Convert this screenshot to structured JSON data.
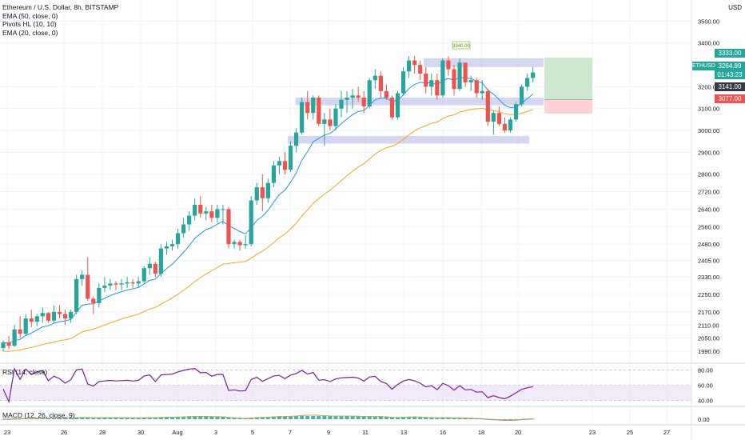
{
  "header": {
    "title": "Ethereum / U.S. Dollar, 8h, BITSTAMP",
    "indicators": [
      "EMA (50, close, 0)",
      "Pivots HL (10, 10)",
      "EMA (20, close, 0)"
    ]
  },
  "currency_label": "USD",
  "symbol_tag": "ETHUSD",
  "price_tags": {
    "target": "3333.00",
    "last": "3264.89",
    "countdown": "01:43:23",
    "entry": "3141.00",
    "stop": "3077.00",
    "pivot_label": "3340.00"
  },
  "rsi_label": "RSI (14, close)",
  "macd_label": "MACD (12, 26, close, 9)",
  "colors": {
    "up": "#26a69a",
    "down": "#ef5350",
    "ema20": "#2196f3",
    "ema50": "#f5a623",
    "rsi": "#7b1fa2",
    "zone": "#b2b5e4",
    "profit": "#c8e6c9",
    "loss": "#ffcdd2"
  },
  "chart_data": [
    {
      "type": "candlestick",
      "x_ticks": [
        "23",
        "26",
        "28",
        "30",
        "Aug",
        "3",
        "5",
        "7",
        "9",
        "11",
        "13",
        "16",
        "18",
        "20",
        "23",
        "25",
        "27"
      ],
      "y_ticks": [
        1990,
        2050,
        2110,
        2170,
        2250,
        2330,
        2405,
        2480,
        2560,
        2640,
        2720,
        2800,
        2900,
        3000,
        3100,
        3200,
        3400,
        3500
      ],
      "ylim": [
        1950,
        3560
      ],
      "candles": [
        [
          2005,
          2040,
          1990,
          2030
        ],
        [
          2030,
          2060,
          2000,
          2015
        ],
        [
          2015,
          2110,
          2010,
          2090
        ],
        [
          2090,
          2150,
          2050,
          2070
        ],
        [
          2070,
          2160,
          2060,
          2140
        ],
        [
          2140,
          2180,
          2100,
          2125
        ],
        [
          2125,
          2160,
          2105,
          2150
        ],
        [
          2150,
          2190,
          2120,
          2165
        ],
        [
          2165,
          2170,
          2120,
          2130
        ],
        [
          2130,
          2200,
          2120,
          2170
        ],
        [
          2170,
          2200,
          2140,
          2160
        ],
        [
          2160,
          2180,
          2110,
          2140
        ],
        [
          2140,
          2180,
          2120,
          2170
        ],
        [
          2170,
          2340,
          2160,
          2320
        ],
        [
          2320,
          2360,
          2290,
          2340
        ],
        [
          2340,
          2420,
          2220,
          2230
        ],
        [
          2230,
          2240,
          2160,
          2210
        ],
        [
          2210,
          2300,
          2190,
          2280
        ],
        [
          2280,
          2330,
          2260,
          2290
        ],
        [
          2290,
          2320,
          2270,
          2300
        ],
        [
          2300,
          2310,
          2270,
          2295
        ],
        [
          2295,
          2320,
          2270,
          2300
        ],
        [
          2300,
          2330,
          2280,
          2305
        ],
        [
          2305,
          2320,
          2280,
          2300
        ],
        [
          2300,
          2330,
          2280,
          2310
        ],
        [
          2310,
          2380,
          2300,
          2370
        ],
        [
          2370,
          2420,
          2340,
          2390
        ],
        [
          2390,
          2400,
          2330,
          2345
        ],
        [
          2345,
          2480,
          2330,
          2460
        ],
        [
          2460,
          2490,
          2430,
          2470
        ],
        [
          2470,
          2500,
          2450,
          2480
        ],
        [
          2480,
          2550,
          2460,
          2530
        ],
        [
          2530,
          2600,
          2510,
          2570
        ],
        [
          2570,
          2630,
          2540,
          2610
        ],
        [
          2610,
          2690,
          2590,
          2660
        ],
        [
          2660,
          2700,
          2600,
          2620
        ],
        [
          2620,
          2650,
          2590,
          2630
        ],
        [
          2630,
          2660,
          2580,
          2600
        ],
        [
          2600,
          2660,
          2580,
          2640
        ],
        [
          2640,
          2660,
          2570,
          2640
        ],
        [
          2640,
          2650,
          2460,
          2480
        ],
        [
          2480,
          2500,
          2460,
          2490
        ],
        [
          2490,
          2500,
          2450,
          2475
        ],
        [
          2475,
          2520,
          2460,
          2480
        ],
        [
          2480,
          2700,
          2470,
          2680
        ],
        [
          2680,
          2760,
          2660,
          2740
        ],
        [
          2740,
          2800,
          2630,
          2690
        ],
        [
          2690,
          2780,
          2670,
          2760
        ],
        [
          2760,
          2860,
          2740,
          2840
        ],
        [
          2840,
          2880,
          2800,
          2860
        ],
        [
          2860,
          2900,
          2800,
          2820
        ],
        [
          2820,
          2950,
          2810,
          2930
        ],
        [
          2930,
          3010,
          2900,
          2990
        ],
        [
          2990,
          3150,
          2980,
          3130
        ],
        [
          3130,
          3180,
          3050,
          3080
        ],
        [
          3080,
          3160,
          3050,
          3150
        ],
        [
          3150,
          3160,
          3020,
          3030
        ],
        [
          3030,
          3080,
          2930,
          3050
        ],
        [
          3050,
          3100,
          3000,
          3020
        ],
        [
          3020,
          3120,
          3000,
          3100
        ],
        [
          3100,
          3180,
          3060,
          3140
        ],
        [
          3140,
          3180,
          3080,
          3150
        ],
        [
          3150,
          3190,
          3100,
          3160
        ],
        [
          3160,
          3200,
          3130,
          3150
        ],
        [
          3150,
          3180,
          3080,
          3110
        ],
        [
          3110,
          3240,
          3100,
          3230
        ],
        [
          3230,
          3280,
          3190,
          3250
        ],
        [
          3250,
          3270,
          3150,
          3180
        ],
        [
          3180,
          3210,
          3140,
          3150
        ],
        [
          3150,
          3160,
          3050,
          3060
        ],
        [
          3060,
          3180,
          3050,
          3170
        ],
        [
          3170,
          3290,
          3160,
          3270
        ],
        [
          3270,
          3340,
          3240,
          3320
        ],
        [
          3320,
          3340,
          3260,
          3300
        ],
        [
          3300,
          3320,
          3230,
          3260
        ],
        [
          3260,
          3290,
          3170,
          3200
        ],
        [
          3200,
          3260,
          3160,
          3230
        ],
        [
          3230,
          3260,
          3140,
          3160
        ],
        [
          3160,
          3330,
          3150,
          3320
        ],
        [
          3320,
          3340,
          3250,
          3280
        ],
        [
          3280,
          3300,
          3160,
          3190
        ],
        [
          3190,
          3330,
          3180,
          3310
        ],
        [
          3310,
          3310,
          3200,
          3220
        ],
        [
          3220,
          3250,
          3180,
          3230
        ],
        [
          3230,
          3240,
          3150,
          3170
        ],
        [
          3170,
          3230,
          3140,
          3180
        ],
        [
          3180,
          3190,
          3020,
          3040
        ],
        [
          3040,
          3090,
          2980,
          3080
        ],
        [
          3080,
          3110,
          3020,
          3030
        ],
        [
          3030,
          3060,
          2990,
          3000
        ],
        [
          3000,
          3060,
          2990,
          3050
        ],
        [
          3050,
          3130,
          3040,
          3120
        ],
        [
          3120,
          3210,
          3110,
          3200
        ],
        [
          3200,
          3260,
          3180,
          3240
        ],
        [
          3240,
          3290,
          3220,
          3265
        ]
      ]
    },
    {
      "type": "line",
      "title": "RSI (14, close)",
      "y_ticks": [
        40,
        60,
        80
      ],
      "ylim": [
        35,
        85
      ]
    },
    {
      "type": "bar",
      "title": "MACD (12, 26, close, 9)",
      "y_ticks": [
        "0.00"
      ]
    }
  ]
}
